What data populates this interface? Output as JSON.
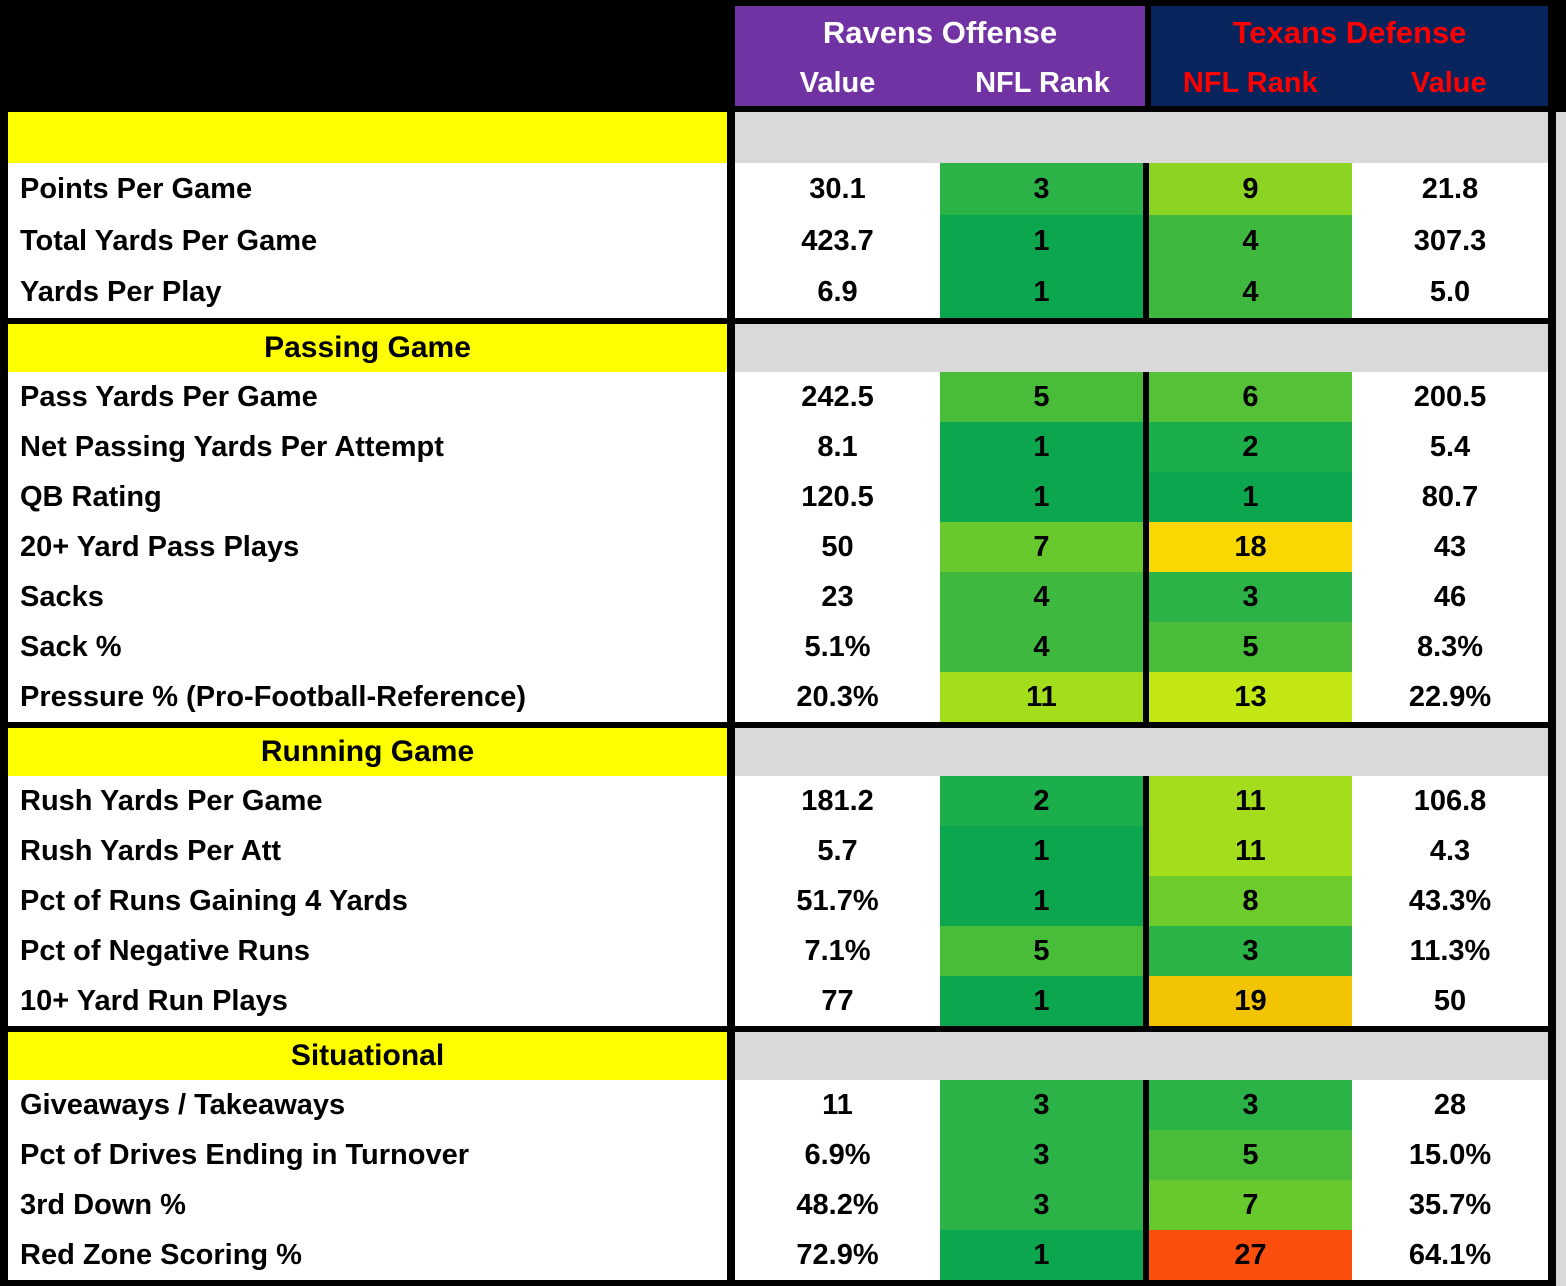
{
  "header": {
    "ravens": {
      "title": "Ravens Offense",
      "col1": "Value",
      "col2": "NFL Rank"
    },
    "texans": {
      "title": "Texans Defense",
      "col1": "NFL Rank",
      "col2": "Value"
    }
  },
  "colors": {
    "ravens_header_bg": "#7132A3",
    "ravens_header_text": "#FFFFFF",
    "texans_header_bg": "#08245C",
    "texans_header_text": "#FF0000",
    "section_bg": "#FFFF00",
    "section_band_bg": "#D9D9D9",
    "grid": "#000000"
  },
  "sections": [
    {
      "title": "",
      "rows": [
        {
          "label": "Points Per Game",
          "ravens_value": "30.1",
          "ravens_rank": "3",
          "ravens_rank_color": "#2CB347",
          "texans_rank": "9",
          "texans_rank_color": "#8CD322",
          "texans_value": "21.8"
        },
        {
          "label": "Total Yards Per Game",
          "ravens_value": "423.7",
          "ravens_rank": "1",
          "ravens_rank_color": "#0CA64F",
          "texans_rank": "4",
          "texans_rank_color": "#3FB83E",
          "texans_value": "307.3"
        },
        {
          "label": "Yards Per Play",
          "ravens_value": "6.9",
          "ravens_rank": "1",
          "ravens_rank_color": "#0CA64F",
          "texans_rank": "4",
          "texans_rank_color": "#3FB83E",
          "texans_value": "5.0"
        }
      ]
    },
    {
      "title": "Passing Game",
      "rows": [
        {
          "label": "Pass Yards Per Game",
          "ravens_value": "242.5",
          "ravens_rank": "5",
          "ravens_rank_color": "#49BC3A",
          "texans_rank": "6",
          "texans_rank_color": "#55C136",
          "texans_value": "200.5"
        },
        {
          "label": "Net Passing Yards Per Attempt",
          "ravens_value": "8.1",
          "ravens_rank": "1",
          "ravens_rank_color": "#0CA64F",
          "texans_rank": "2",
          "texans_rank_color": "#1CAE4A",
          "texans_value": "5.4"
        },
        {
          "label": "QB Rating",
          "ravens_value": "120.5",
          "ravens_rank": "1",
          "ravens_rank_color": "#0CA64F",
          "texans_rank": "1",
          "texans_rank_color": "#0CA64F",
          "texans_value": "80.7"
        },
        {
          "label": "20+ Yard Pass Plays",
          "ravens_value": "50",
          "ravens_rank": "7",
          "ravens_rank_color": "#68C92F",
          "texans_rank": "18",
          "texans_rank_color": "#F8D702",
          "texans_value": "43"
        },
        {
          "label": "Sacks",
          "ravens_value": "23",
          "ravens_rank": "4",
          "ravens_rank_color": "#3FB83E",
          "texans_rank": "3",
          "texans_rank_color": "#2CB347",
          "texans_value": "46"
        },
        {
          "label": "Sack %",
          "ravens_value": "5.1%",
          "ravens_rank": "4",
          "ravens_rank_color": "#3FB83E",
          "texans_rank": "5",
          "texans_rank_color": "#49BC3A",
          "texans_value": "8.3%"
        },
        {
          "label": "Pressure % (Pro-Football-Reference)",
          "ravens_value": "20.3%",
          "ravens_rank": "11",
          "ravens_rank_color": "#A3DD1C",
          "texans_rank": "13",
          "texans_rank_color": "#C2E713",
          "texans_value": "22.9%"
        }
      ]
    },
    {
      "title": "Running Game",
      "rows": [
        {
          "label": "Rush Yards Per Game",
          "ravens_value": "181.2",
          "ravens_rank": "2",
          "ravens_rank_color": "#1CAE4A",
          "texans_rank": "11",
          "texans_rank_color": "#A3DD1C",
          "texans_value": "106.8"
        },
        {
          "label": "Rush Yards Per Att",
          "ravens_value": "5.7",
          "ravens_rank": "1",
          "ravens_rank_color": "#0CA64F",
          "texans_rank": "11",
          "texans_rank_color": "#A3DD1C",
          "texans_value": "4.3"
        },
        {
          "label": "Pct of Runs Gaining 4 Yards",
          "ravens_value": "51.7%",
          "ravens_rank": "1",
          "ravens_rank_color": "#0CA64F",
          "texans_rank": "8",
          "texans_rank_color": "#6ECB2C",
          "texans_value": "43.3%"
        },
        {
          "label": "Pct of Negative Runs",
          "ravens_value": "7.1%",
          "ravens_rank": "5",
          "ravens_rank_color": "#49BC3A",
          "texans_rank": "3",
          "texans_rank_color": "#2CB347",
          "texans_value": "11.3%"
        },
        {
          "label": "10+ Yard Run Plays",
          "ravens_value": "77",
          "ravens_rank": "1",
          "ravens_rank_color": "#0CA64F",
          "texans_rank": "19",
          "texans_rank_color": "#F2C402",
          "texans_value": "50"
        }
      ]
    },
    {
      "title": "Situational",
      "rows": [
        {
          "label": "Giveaways / Takeaways",
          "ravens_value": "11",
          "ravens_rank": "3",
          "ravens_rank_color": "#2CB347",
          "texans_rank": "3",
          "texans_rank_color": "#2CB347",
          "texans_value": "28"
        },
        {
          "label": "Pct of Drives Ending in Turnover",
          "ravens_value": "6.9%",
          "ravens_rank": "3",
          "ravens_rank_color": "#2CB347",
          "texans_rank": "5",
          "texans_rank_color": "#49BC3A",
          "texans_value": "15.0%"
        },
        {
          "label": "3rd Down %",
          "ravens_value": "48.2%",
          "ravens_rank": "3",
          "ravens_rank_color": "#2CB347",
          "texans_rank": "7",
          "texans_rank_color": "#68C92F",
          "texans_value": "35.7%"
        },
        {
          "label": "Red Zone Scoring %",
          "ravens_value": "72.9%",
          "ravens_rank": "1",
          "ravens_rank_color": "#0CA64F",
          "texans_rank": "27",
          "texans_rank_color": "#FB4E0C",
          "texans_value": "64.1%"
        }
      ]
    }
  ],
  "chart_data": {
    "type": "table",
    "columns": [
      "Stat",
      "Ravens Offense Value",
      "Ravens Offense NFL Rank",
      "Texans Defense NFL Rank",
      "Texans Defense Value"
    ],
    "sections": [
      {
        "name": "",
        "rows": [
          [
            "Points Per Game",
            30.1,
            3,
            9,
            21.8
          ],
          [
            "Total Yards Per Game",
            423.7,
            1,
            4,
            307.3
          ],
          [
            "Yards Per Play",
            6.9,
            1,
            4,
            5.0
          ]
        ]
      },
      {
        "name": "Passing Game",
        "rows": [
          [
            "Pass Yards Per Game",
            242.5,
            5,
            6,
            200.5
          ],
          [
            "Net Passing Yards Per Attempt",
            8.1,
            1,
            2,
            5.4
          ],
          [
            "QB Rating",
            120.5,
            1,
            1,
            80.7
          ],
          [
            "20+ Yard Pass Plays",
            50,
            7,
            18,
            43
          ],
          [
            "Sacks",
            23,
            4,
            3,
            46
          ],
          [
            "Sack %",
            "5.1%",
            4,
            5,
            "8.3%"
          ],
          [
            "Pressure % (Pro-Football-Reference)",
            "20.3%",
            11,
            13,
            "22.9%"
          ]
        ]
      },
      {
        "name": "Running Game",
        "rows": [
          [
            "Rush Yards Per Game",
            181.2,
            2,
            11,
            106.8
          ],
          [
            "Rush Yards Per Att",
            5.7,
            1,
            11,
            4.3
          ],
          [
            "Pct of Runs Gaining 4 Yards",
            "51.7%",
            1,
            8,
            "43.3%"
          ],
          [
            "Pct of Negative Runs",
            "7.1%",
            5,
            3,
            "11.3%"
          ],
          [
            "10+ Yard Run Plays",
            77,
            1,
            19,
            50
          ]
        ]
      },
      {
        "name": "Situational",
        "rows": [
          [
            "Giveaways / Takeaways",
            11,
            3,
            3,
            28
          ],
          [
            "Pct of Drives Ending in Turnover",
            "6.9%",
            3,
            5,
            "15.0%"
          ],
          [
            "3rd Down %",
            "48.2%",
            3,
            7,
            "35.7%"
          ],
          [
            "Red Zone Scoring %",
            "72.9%",
            1,
            27,
            "64.1%"
          ]
        ]
      }
    ],
    "legend_note": "Rank cells are color-scaled green (best) to red (worst) across NFL ranks"
  }
}
